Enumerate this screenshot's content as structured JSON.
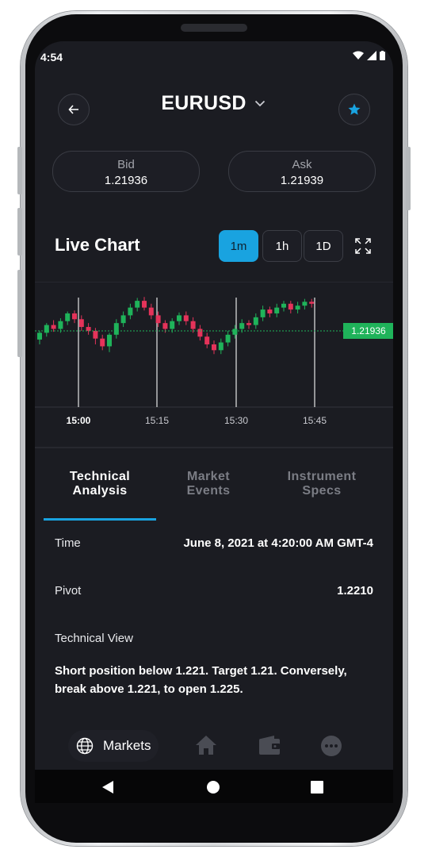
{
  "status": {
    "time": "4:54"
  },
  "header": {
    "title": "EURUSD"
  },
  "quote": {
    "bid_label": "Bid",
    "bid_value": "1.21936",
    "ask_label": "Ask",
    "ask_value": "1.21939"
  },
  "chart_section": {
    "title": "Live Chart",
    "timeframes": [
      {
        "label": "1m",
        "active": true
      },
      {
        "label": "1h",
        "active": false
      },
      {
        "label": "1D",
        "active": false
      }
    ]
  },
  "chart_data": {
    "type": "candlestick",
    "x_ticks": [
      "15:00",
      "15:15",
      "15:30",
      "15:45"
    ],
    "current_price": "1.21936",
    "colors": {
      "up": "#1fb35a",
      "down": "#e5335a",
      "price_line": "#1fb35a"
    },
    "candles": [
      [
        0.55,
        0.62,
        0.5,
        0.64
      ],
      [
        0.62,
        0.7,
        0.58,
        0.72
      ],
      [
        0.7,
        0.66,
        0.63,
        0.75
      ],
      [
        0.66,
        0.74,
        0.62,
        0.77
      ],
      [
        0.74,
        0.82,
        0.7,
        0.84
      ],
      [
        0.82,
        0.76,
        0.72,
        0.85
      ],
      [
        0.76,
        0.68,
        0.64,
        0.8
      ],
      [
        0.68,
        0.64,
        0.6,
        0.72
      ],
      [
        0.64,
        0.56,
        0.5,
        0.67
      ],
      [
        0.56,
        0.48,
        0.44,
        0.6
      ],
      [
        0.48,
        0.6,
        0.42,
        0.62
      ],
      [
        0.6,
        0.72,
        0.56,
        0.76
      ],
      [
        0.72,
        0.8,
        0.68,
        0.84
      ],
      [
        0.8,
        0.88,
        0.76,
        0.92
      ],
      [
        0.88,
        0.95,
        0.84,
        0.98
      ],
      [
        0.95,
        0.88,
        0.85,
        0.99
      ],
      [
        0.88,
        0.8,
        0.76,
        0.92
      ],
      [
        0.8,
        0.72,
        0.68,
        0.84
      ],
      [
        0.72,
        0.66,
        0.62,
        0.75
      ],
      [
        0.66,
        0.74,
        0.62,
        0.77
      ],
      [
        0.74,
        0.8,
        0.7,
        0.83
      ],
      [
        0.8,
        0.74,
        0.7,
        0.84
      ],
      [
        0.74,
        0.66,
        0.62,
        0.78
      ],
      [
        0.66,
        0.58,
        0.54,
        0.7
      ],
      [
        0.58,
        0.5,
        0.46,
        0.62
      ],
      [
        0.5,
        0.44,
        0.4,
        0.54
      ],
      [
        0.44,
        0.52,
        0.4,
        0.56
      ],
      [
        0.52,
        0.6,
        0.48,
        0.64
      ],
      [
        0.6,
        0.66,
        0.56,
        0.7
      ],
      [
        0.66,
        0.72,
        0.62,
        0.76
      ],
      [
        0.72,
        0.7,
        0.66,
        0.75
      ],
      [
        0.7,
        0.78,
        0.66,
        0.82
      ],
      [
        0.78,
        0.86,
        0.74,
        0.9
      ],
      [
        0.86,
        0.82,
        0.78,
        0.89
      ],
      [
        0.82,
        0.88,
        0.78,
        0.92
      ],
      [
        0.88,
        0.92,
        0.84,
        0.95
      ],
      [
        0.92,
        0.86,
        0.82,
        0.95
      ],
      [
        0.86,
        0.9,
        0.82,
        0.94
      ],
      [
        0.9,
        0.94,
        0.86,
        0.97
      ],
      [
        0.94,
        0.92,
        0.88,
        0.97
      ]
    ]
  },
  "tabs": [
    {
      "line1": "Technical",
      "line2": "Analysis",
      "active": true
    },
    {
      "line1": "Market",
      "line2": "Events",
      "active": false
    },
    {
      "line1": "Instrument",
      "line2": "Specs",
      "active": false
    }
  ],
  "details": {
    "time_label": "Time",
    "time_value": "June 8, 2021 at 4:20:00 AM GMT-4",
    "pivot_label": "Pivot",
    "pivot_value": "1.2210",
    "view_label": "Technical View",
    "view_text": "Short position below 1.221. Target 1.21. Conversely, break above 1.221, to open 1.225."
  },
  "nav": {
    "markets_label": "Markets"
  },
  "icons": [
    "back-arrow-icon",
    "chevron-down-icon",
    "star-icon",
    "expand-icon",
    "globe-icon",
    "home-icon",
    "wallet-icon",
    "more-icon",
    "back-triangle-icon",
    "home-circle-icon",
    "recents-square-icon"
  ],
  "accent": "#19a3e0"
}
